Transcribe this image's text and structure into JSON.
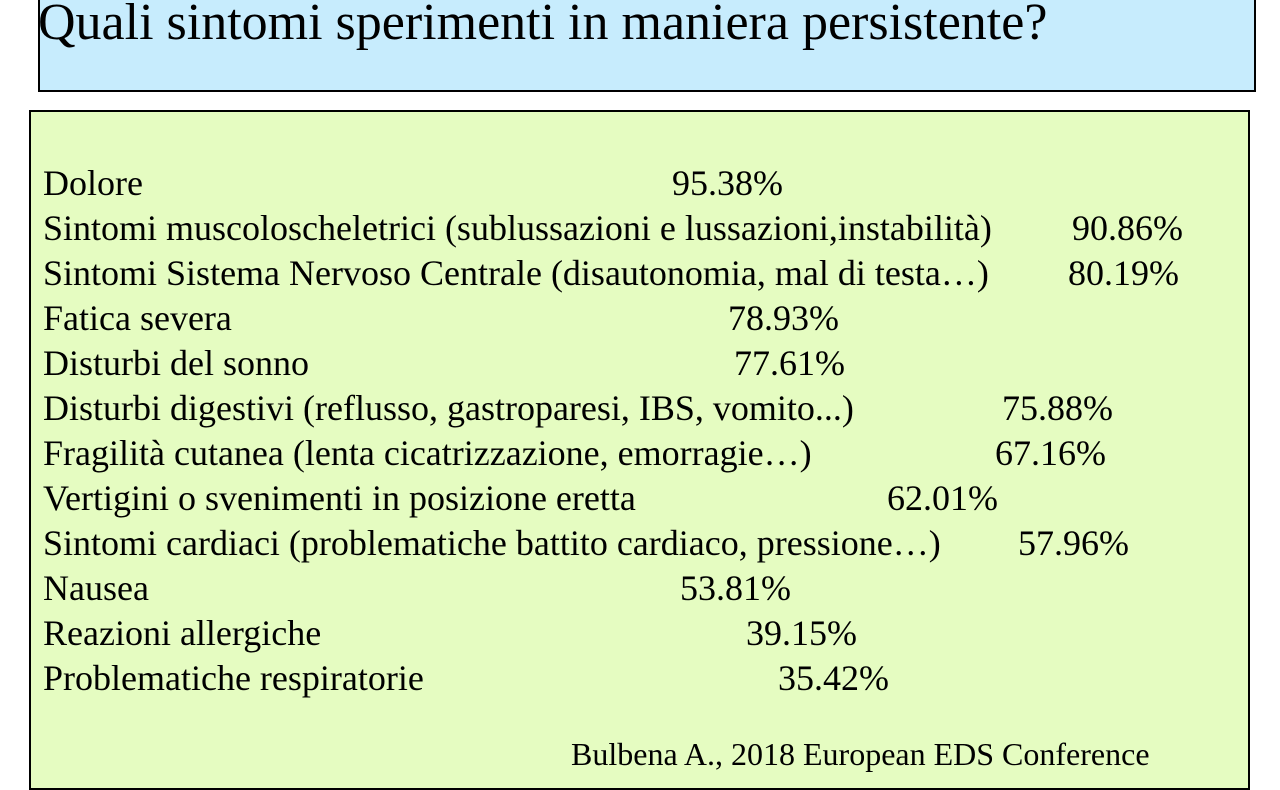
{
  "slide": {
    "title": "Quali sintomi sperimenti in maniera persistente?",
    "symptoms": [
      {
        "label": "Dolore",
        "value": "95.38%"
      },
      {
        "label": "Sintomi muscoloscheletrici (sublussazioni e lussazioni,instabilità)",
        "value": "90.86%"
      },
      {
        "label": "Sintomi Sistema Nervoso Centrale (disautonomia, mal di testa…)",
        "value": "80.19%"
      },
      {
        "label": "Fatica severa",
        "value": "78.93%"
      },
      {
        "label": "Disturbi del sonno",
        "value": "77.61%"
      },
      {
        "label": "Disturbi digestivi (reflusso, gastroparesi, IBS, vomito...)",
        "value": "75.88%"
      },
      {
        "label": "Fragilità cutanea (lenta cicatrizzazione, emorragie…)",
        "value": "67.16%"
      },
      {
        "label": "Vertigini o svenimenti in posizione eretta",
        "value": "62.01%"
      },
      {
        "label": "Sintomi cardiaci (problematiche battito cardiaco, pressione…)",
        "value": "57.96%"
      },
      {
        "label": "Nausea",
        "value": "53.81%"
      },
      {
        "label": "Reazioni allergiche",
        "value": "39.15%"
      },
      {
        "label": "Problematiche respiratorie",
        "value": "35.42%"
      }
    ],
    "citation": "Bulbena A., 2018 European EDS Conference"
  }
}
